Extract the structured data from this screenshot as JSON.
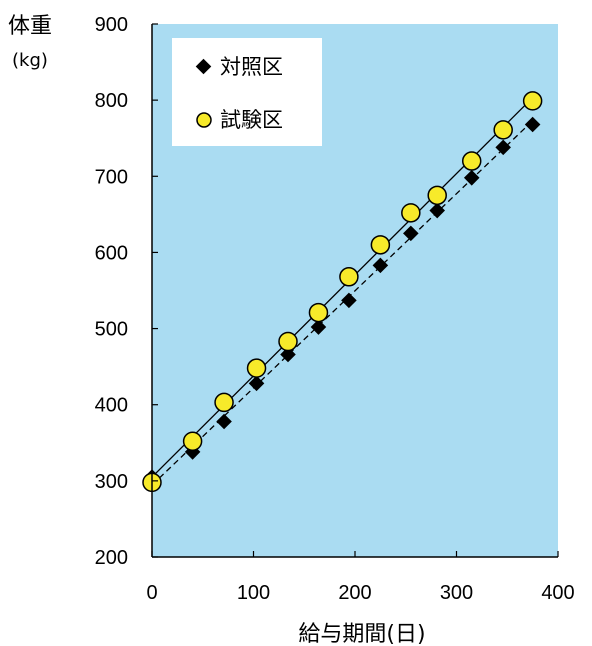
{
  "chart_data": {
    "type": "line",
    "ylabel": "体重",
    "yunit": "(kg)",
    "xlabel": "給与期間(日)",
    "xlim": [
      0,
      400
    ],
    "ylim": [
      200,
      900
    ],
    "xticks": [
      0,
      100,
      200,
      300,
      400
    ],
    "yticks": [
      200,
      300,
      400,
      500,
      600,
      700,
      800,
      900
    ],
    "legend_position": "top-left",
    "grid": false,
    "colors": {
      "plot_background": "#aadcf2",
      "test_marker": "#f7ea2a",
      "control_marker": "#000000"
    },
    "series": [
      {
        "name": "対照区",
        "marker": "diamond",
        "line_style": "dashed",
        "x": [
          0,
          40,
          71,
          103,
          134,
          164,
          194,
          225,
          255,
          281,
          315,
          346,
          375
        ],
        "y": [
          305,
          338,
          378,
          428,
          466,
          502,
          537,
          583,
          625,
          655,
          698,
          738,
          768
        ]
      },
      {
        "name": "試験区",
        "marker": "circle",
        "line_style": "solid",
        "x": [
          0,
          40,
          71,
          103,
          134,
          164,
          194,
          225,
          255,
          281,
          315,
          346,
          375
        ],
        "y": [
          298,
          352,
          403,
          448,
          483,
          521,
          568,
          610,
          652,
          675,
          720,
          761,
          799
        ]
      }
    ]
  }
}
